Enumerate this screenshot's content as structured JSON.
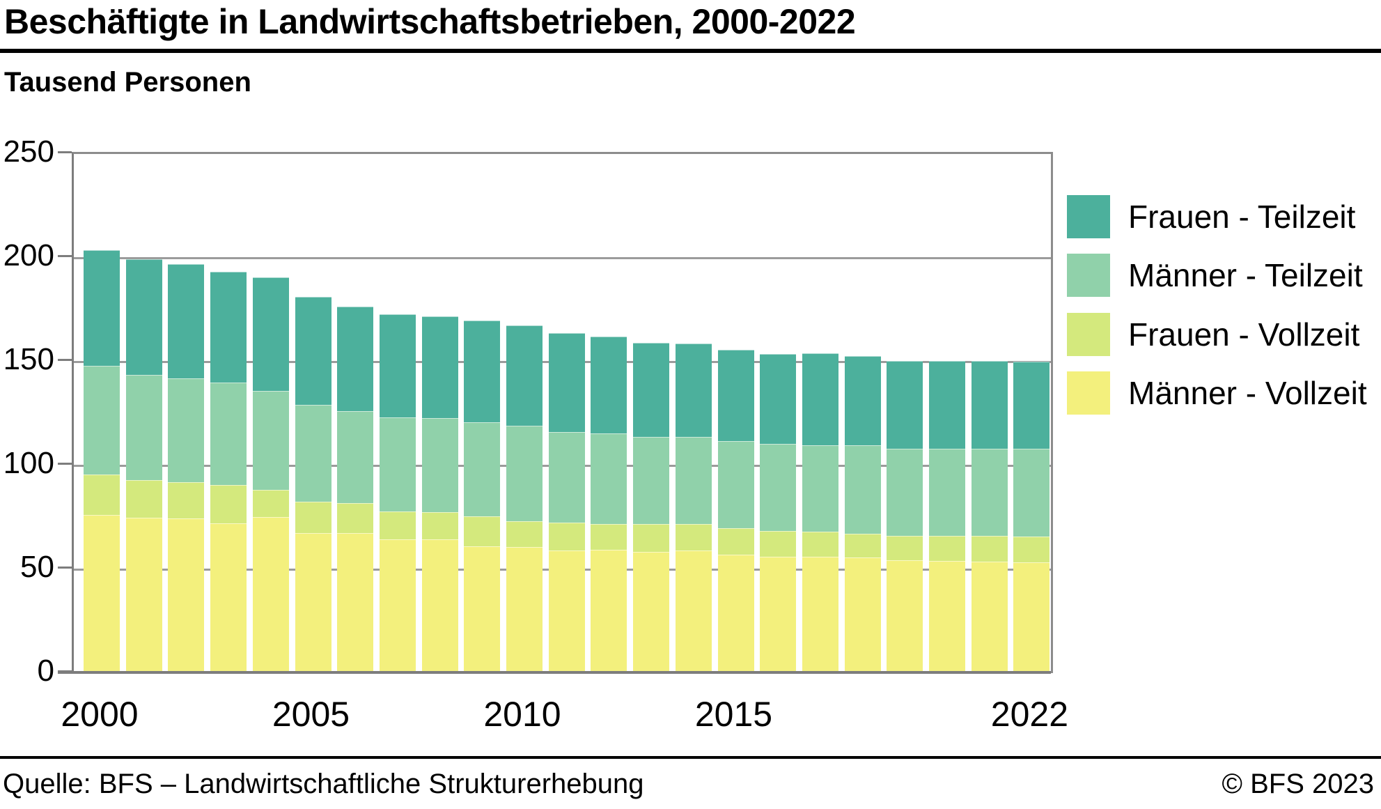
{
  "header": {
    "title": "Beschäftigte in Landwirtschaftsbetrieben, 2000-2022",
    "subtitle_unit": "Tausend Personen"
  },
  "footer": {
    "source": "Quelle: BFS – Landwirtschaftliche Strukturerhebung",
    "copyright": "© BFS 2023"
  },
  "legend": {
    "position": "right",
    "items": [
      {
        "label": "Frauen - Teilzeit",
        "color": "#4cb09c"
      },
      {
        "label": "Männer - Teilzeit",
        "color": "#90d1aa"
      },
      {
        "label": "Frauen - Vollzeit",
        "color": "#d4e97d"
      },
      {
        "label": "Männer - Vollzeit",
        "color": "#f3f07d"
      }
    ]
  },
  "chart_data": {
    "type": "bar",
    "stacked": true,
    "title": "Beschäftigte in Landwirtschaftsbetrieben, 2000-2022",
    "xlabel": "",
    "ylabel": "Tausend Personen",
    "ylim": [
      0,
      250
    ],
    "yticks": [
      0,
      50,
      100,
      150,
      200,
      250
    ],
    "grid": true,
    "legend_position": "right",
    "categories": [
      2000,
      2001,
      2002,
      2003,
      2004,
      2005,
      2006,
      2007,
      2008,
      2009,
      2010,
      2011,
      2012,
      2013,
      2014,
      2015,
      2016,
      2017,
      2018,
      2019,
      2020,
      2021,
      2022
    ],
    "x_axis_labeled_years": [
      2000,
      2005,
      2010,
      2015,
      2022
    ],
    "series": [
      {
        "name": "Männer - Vollzeit",
        "color": "#f3f07d",
        "values": [
          76.2,
          74.8,
          74.4,
          72.3,
          75.1,
          67.6,
          67.5,
          64.3,
          64.3,
          61.2,
          60.9,
          59.1,
          59.5,
          58.4,
          59.1,
          57.2,
          56.2,
          56.2,
          55.6,
          54.4,
          54.1,
          53.8,
          53.4
        ]
      },
      {
        "name": "Frauen - Vollzeit",
        "color": "#d4e97d",
        "values": [
          19.4,
          18.3,
          17.4,
          18.2,
          13.2,
          15.1,
          14.5,
          13.4,
          13.2,
          14.4,
          12.3,
          13.4,
          12.3,
          13.4,
          12.7,
          12.5,
          12.1,
          11.8,
          11.6,
          11.8,
          12.1,
          12.4,
          12.5
        ]
      },
      {
        "name": "Männer - Teilzeit",
        "color": "#90d1aa",
        "values": [
          52.4,
          50.4,
          50.1,
          49.4,
          47.7,
          46.5,
          44.3,
          45.5,
          45.3,
          45.1,
          46.1,
          43.5,
          43.5,
          41.8,
          41.8,
          42.2,
          42.0,
          41.6,
          42.5,
          42.0,
          41.7,
          41.7,
          42.0
        ]
      },
      {
        "name": "Frauen - Teilzeit",
        "color": "#4cb09c",
        "values": [
          55.7,
          55.9,
          55.0,
          53.4,
          54.5,
          52.1,
          50.3,
          49.5,
          48.9,
          49.1,
          48.1,
          47.9,
          46.7,
          45.6,
          45.3,
          43.8,
          43.3,
          44.4,
          43.0,
          42.2,
          42.5,
          42.5,
          42.1
        ]
      }
    ],
    "totals": [
      203.7,
      199.4,
      196.9,
      193.3,
      190.5,
      181.3,
      176.6,
      172.7,
      171.7,
      169.8,
      167.4,
      163.9,
      162.0,
      159.2,
      158.9,
      155.7,
      153.6,
      154.0,
      152.7,
      150.4,
      150.4,
      150.4,
      150.0
    ]
  }
}
